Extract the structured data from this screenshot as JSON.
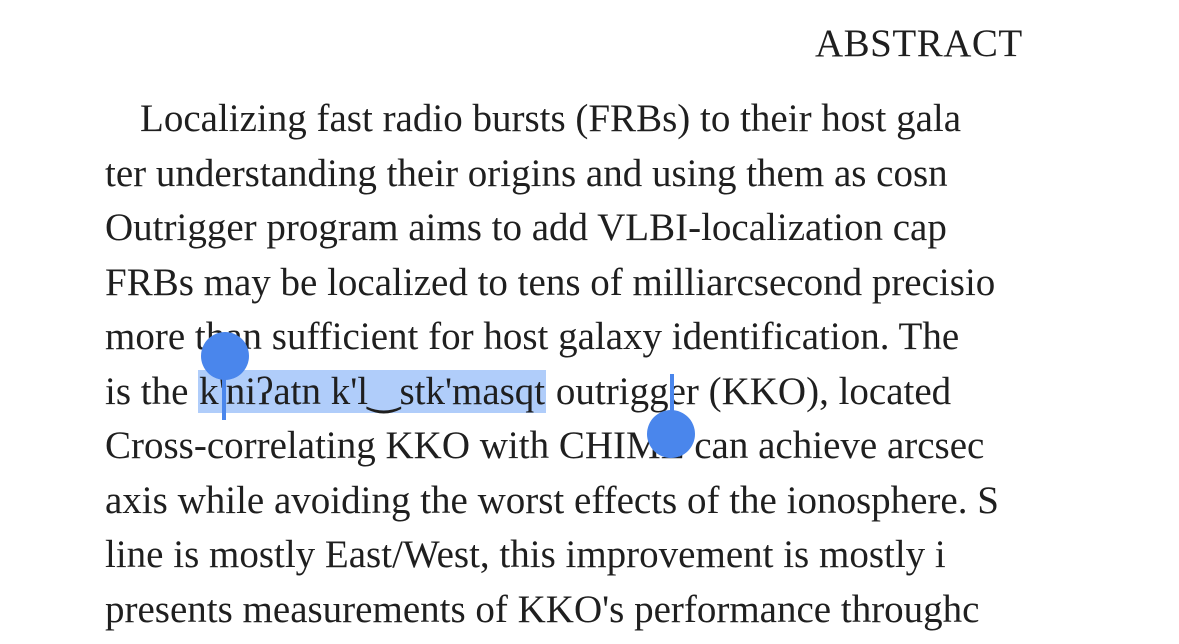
{
  "document": {
    "heading": "ABSTRACT",
    "lines": [
      "Localizing fast radio bursts (FRBs) to their host gala",
      "ter understanding their origins and using them as cosn",
      "Outrigger program aims to add VLBI-localization cap",
      "FRBs may be localized to tens of milliarcsecond precisio",
      "more than sufficient for host galaxy identification. The",
      "is the ",
      "Cross-correlating KKO with CHIME can achieve arcsec",
      "axis while avoiding the worst effects of the ionosphere. S",
      "line is mostly East/West, this improvement is mostly i",
      "presents measurements of KKO's performance throughc"
    ],
    "selected_text": "k'niʔatn k'l‿stk'masqt",
    "line6_after": " outrigger (KKO), located"
  },
  "selection": {
    "color": "#6fa4f5",
    "handle_color": "#4a86ec"
  }
}
